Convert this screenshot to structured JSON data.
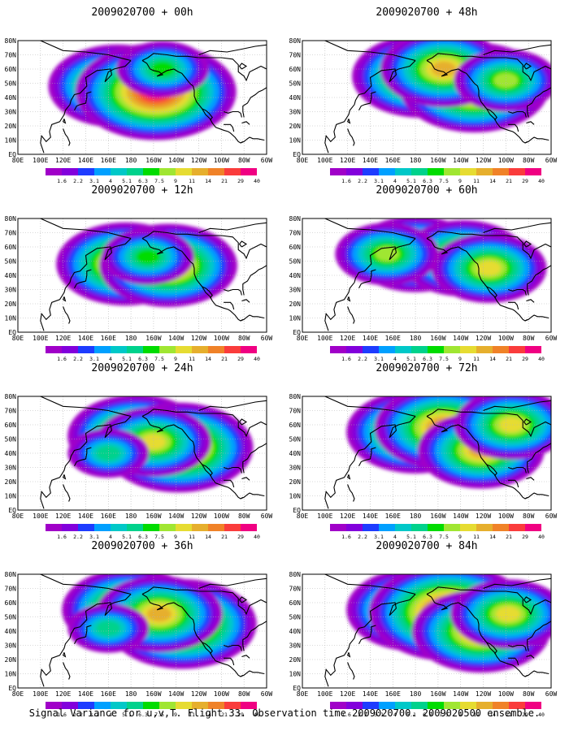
{
  "caption": "Signal Variance for u,v,T. Flight 33. Observation time 2009020700. 2009020500 ensemble.",
  "colors": {
    "scale": [
      "#a000c8",
      "#8200dc",
      "#1e3cff",
      "#00a0ff",
      "#00c8c8",
      "#00d28c",
      "#00dc00",
      "#a0e632",
      "#e6dc32",
      "#e6af2d",
      "#f08228",
      "#fa3c3c",
      "#f00082"
    ],
    "frame": "#000000",
    "grid": "#b4b4b4"
  },
  "chart_data": [
    {
      "type": "heatmap",
      "title": "2009020700 + 00h",
      "lat_labels": [
        "80N",
        "70N",
        "60N",
        "50N",
        "40N",
        "30N",
        "20N",
        "10N",
        "EQ"
      ],
      "lon_labels": [
        "80E",
        "100E",
        "120E",
        "140E",
        "160E",
        "180",
        "160W",
        "140W",
        "120W",
        "100W",
        "80W",
        "60W"
      ],
      "colorbar_labels": [
        "1.6",
        "2.2",
        "3.1",
        "4",
        "5.1",
        "6.3",
        "7.5",
        "9",
        "11",
        "14",
        "21",
        "29",
        "40"
      ],
      "blobs": [
        {
          "lon": 168,
          "lat": 48,
          "level": 10
        },
        {
          "lon": 202,
          "lat": 44,
          "level": 12
        },
        {
          "lon": 208,
          "lat": 60,
          "level": 6
        }
      ]
    },
    {
      "type": "heatmap",
      "title": "2009020700 + 12h",
      "lat_labels": [
        "80N",
        "70N",
        "60N",
        "50N",
        "40N",
        "30N",
        "20N",
        "10N",
        "EQ"
      ],
      "lon_labels": [
        "80E",
        "100E",
        "120E",
        "140E",
        "160E",
        "180",
        "160W",
        "140W",
        "120W",
        "100W",
        "80W",
        "60W"
      ],
      "colorbar_labels": [
        "1.6",
        "2.2",
        "3.1",
        "4",
        "5.1",
        "6.3",
        "7.5",
        "9",
        "11",
        "14",
        "21",
        "29",
        "40"
      ],
      "blobs": [
        {
          "lon": 175,
          "lat": 48,
          "level": 10
        },
        {
          "lon": 213,
          "lat": 47,
          "level": 10
        },
        {
          "lon": 195,
          "lat": 53,
          "level": 6
        }
      ]
    },
    {
      "type": "heatmap",
      "title": "2009020700 + 24h",
      "lat_labels": [
        "80N",
        "70N",
        "60N",
        "50N",
        "40N",
        "30N",
        "20N",
        "10N",
        "EQ"
      ],
      "lon_labels": [
        "80E",
        "100E",
        "120E",
        "140E",
        "160E",
        "180",
        "160W",
        "140W",
        "120W",
        "100W",
        "80W",
        "60W"
      ],
      "colorbar_labels": [
        "1.6",
        "2.2",
        "3.1",
        "4",
        "5.1",
        "6.3",
        "7.5",
        "9",
        "11",
        "14",
        "21",
        "29",
        "40"
      ],
      "blobs": [
        {
          "lon": 185,
          "lat": 52,
          "level": 10
        },
        {
          "lon": 222,
          "lat": 44,
          "level": 11
        },
        {
          "lon": 200,
          "lat": 48,
          "level": 8
        },
        {
          "lon": 160,
          "lat": 40,
          "level": 5
        }
      ]
    },
    {
      "type": "heatmap",
      "title": "2009020700 + 36h",
      "lat_labels": [
        "80N",
        "70N",
        "60N",
        "50N",
        "40N",
        "30N",
        "20N",
        "10N",
        "EQ"
      ],
      "lon_labels": [
        "80E",
        "100E",
        "120E",
        "140E",
        "160E",
        "180",
        "160W",
        "140W",
        "120W",
        "100W",
        "80W",
        "60W"
      ],
      "colorbar_labels": [
        "1.6",
        "2.2",
        "3.1",
        "4",
        "5.1",
        "6.3",
        "7.5",
        "9",
        "11",
        "14",
        "21",
        "29",
        "40"
      ],
      "blobs": [
        {
          "lon": 180,
          "lat": 55,
          "level": 10
        },
        {
          "lon": 225,
          "lat": 45,
          "level": 11
        },
        {
          "lon": 205,
          "lat": 52,
          "level": 9
        },
        {
          "lon": 160,
          "lat": 42,
          "level": 5
        }
      ]
    },
    {
      "type": "heatmap",
      "title": "2009020700 + 48h",
      "lat_labels": [
        "80N",
        "70N",
        "60N",
        "50N",
        "40N",
        "30N",
        "20N",
        "10N",
        "EQ"
      ],
      "lon_labels": [
        "80E",
        "100E",
        "120E",
        "140E",
        "160E",
        "180",
        "160W",
        "140W",
        "120W",
        "100W",
        "80W",
        "60W"
      ],
      "colorbar_labels": [
        "1.6",
        "2.2",
        "3.1",
        "4",
        "5.1",
        "6.3",
        "7.5",
        "9",
        "11",
        "14",
        "21",
        "29",
        "40"
      ],
      "blobs": [
        {
          "lon": 185,
          "lat": 55,
          "level": 10
        },
        {
          "lon": 232,
          "lat": 47,
          "level": 11
        },
        {
          "lon": 205,
          "lat": 60,
          "level": 9
        },
        {
          "lon": 260,
          "lat": 52,
          "level": 7
        }
      ]
    },
    {
      "type": "heatmap",
      "title": "2009020700 + 60h",
      "lat_labels": [
        "80N",
        "70N",
        "60N",
        "50N",
        "40N",
        "30N",
        "20N",
        "10N",
        "EQ"
      ],
      "lon_labels": [
        "80E",
        "100E",
        "120E",
        "140E",
        "160E",
        "180",
        "160W",
        "140W",
        "120W",
        "100W",
        "80W",
        "60W"
      ],
      "colorbar_labels": [
        "1.6",
        "2.2",
        "3.1",
        "4",
        "5.1",
        "6.3",
        "7.5",
        "9",
        "11",
        "14",
        "21",
        "29",
        "40"
      ],
      "blobs": [
        {
          "lon": 180,
          "lat": 55,
          "level": 9
        },
        {
          "lon": 222,
          "lat": 52,
          "level": 9
        },
        {
          "lon": 245,
          "lat": 45,
          "level": 8
        },
        {
          "lon": 155,
          "lat": 55,
          "level": 7
        }
      ]
    },
    {
      "type": "heatmap",
      "title": "2009020700 + 72h",
      "lat_labels": [
        "80N",
        "70N",
        "60N",
        "50N",
        "40N",
        "30N",
        "20N",
        "10N",
        "EQ"
      ],
      "lon_labels": [
        "80E",
        "100E",
        "120E",
        "140E",
        "160E",
        "180",
        "160W",
        "140W",
        "120W",
        "100W",
        "80W",
        "60W"
      ],
      "colorbar_labels": [
        "1.6",
        "2.2",
        "3.1",
        "4",
        "5.1",
        "6.3",
        "7.5",
        "9",
        "11",
        "14",
        "21",
        "29",
        "40"
      ],
      "blobs": [
        {
          "lon": 180,
          "lat": 55,
          "level": 10
        },
        {
          "lon": 205,
          "lat": 58,
          "level": 10
        },
        {
          "lon": 238,
          "lat": 42,
          "level": 9
        },
        {
          "lon": 265,
          "lat": 60,
          "level": 8
        }
      ]
    },
    {
      "type": "heatmap",
      "title": "2009020700 + 84h",
      "lat_labels": [
        "80N",
        "70N",
        "60N",
        "50N",
        "40N",
        "30N",
        "20N",
        "10N",
        "EQ"
      ],
      "lon_labels": [
        "80E",
        "100E",
        "120E",
        "140E",
        "160E",
        "180",
        "160W",
        "140W",
        "120W",
        "100W",
        "80W",
        "60W"
      ],
      "colorbar_labels": [
        "1.6",
        "2.2",
        "3.1",
        "4",
        "5.1",
        "6.3",
        "7.5",
        "9",
        "11",
        "14",
        "21",
        "29",
        "40"
      ],
      "blobs": [
        {
          "lon": 180,
          "lat": 55,
          "level": 10
        },
        {
          "lon": 210,
          "lat": 53,
          "level": 12
        },
        {
          "lon": 238,
          "lat": 40,
          "level": 10
        },
        {
          "lon": 262,
          "lat": 52,
          "level": 8
        }
      ]
    }
  ]
}
